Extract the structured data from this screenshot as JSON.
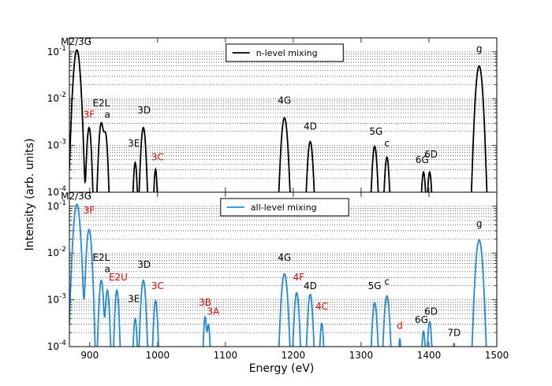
{
  "chart_data": {
    "type": "line",
    "xlabel": "Energy (eV)",
    "ylabel": "Intensity (arb. units)",
    "xlim": [
      870,
      1500
    ],
    "ylim": [
      0.0001,
      0.2
    ],
    "yscale": "log",
    "grid": "horizontal minor dotted",
    "x_ticks": [
      900,
      1000,
      1100,
      1200,
      1300,
      1400,
      1500
    ],
    "y_ticks": [
      {
        "value": 0.1,
        "mant": "10",
        "exp": "-1"
      },
      {
        "value": 0.01,
        "mant": "10",
        "exp": "-2"
      },
      {
        "value": 0.001,
        "mant": "10",
        "exp": "-3"
      },
      {
        "value": 0.0001,
        "mant": "10",
        "exp": "-4"
      }
    ],
    "panels": [
      {
        "name": "n-level mixing",
        "legend": "n-level mixing",
        "legend_position": "top-center",
        "color": "#000000",
        "peaks": [
          {
            "x": 881,
            "y": 0.11,
            "w": 3.2
          },
          {
            "x": 899,
            "y": 0.0024,
            "w": 2.2
          },
          {
            "x": 917,
            "y": 0.003,
            "w": 2.4
          },
          {
            "x": 923,
            "y": 0.0018,
            "w": 2.2
          },
          {
            "x": 967,
            "y": 0.00042,
            "w": 1.8
          },
          {
            "x": 979,
            "y": 0.0024,
            "w": 2.4
          },
          {
            "x": 997,
            "y": 0.0003,
            "w": 1.6
          },
          {
            "x": 1187,
            "y": 0.0039,
            "w": 3.0
          },
          {
            "x": 1225,
            "y": 0.0012,
            "w": 2.6
          },
          {
            "x": 1320,
            "y": 0.00095,
            "w": 2.4
          },
          {
            "x": 1338,
            "y": 0.00055,
            "w": 2.2
          },
          {
            "x": 1392,
            "y": 0.00026,
            "w": 2.0
          },
          {
            "x": 1401,
            "y": 0.00026,
            "w": 2.0
          },
          {
            "x": 1474,
            "y": 0.05,
            "w": 3.2
          }
        ],
        "annotations": [
          {
            "text": "M2/3G",
            "x": 880,
            "y": 0.14,
            "color": "black"
          },
          {
            "text": "E2L",
            "x": 917,
            "y": 0.0068,
            "color": "black"
          },
          {
            "text": "3F",
            "x": 899,
            "y": 0.0039,
            "color": "red"
          },
          {
            "text": "a",
            "x": 926,
            "y": 0.0039,
            "color": "black"
          },
          {
            "text": "3D",
            "x": 980,
            "y": 0.0048,
            "color": "black"
          },
          {
            "text": "3E",
            "x": 965,
            "y": 0.00095,
            "color": "black"
          },
          {
            "text": "3C",
            "x": 1000,
            "y": 0.00048,
            "color": "red"
          },
          {
            "text": "4G",
            "x": 1187,
            "y": 0.0078,
            "color": "black"
          },
          {
            "text": "4D",
            "x": 1225,
            "y": 0.0022,
            "color": "black"
          },
          {
            "text": "5G",
            "x": 1322,
            "y": 0.0017,
            "color": "black"
          },
          {
            "text": "c",
            "x": 1338,
            "y": 0.00095,
            "color": "black"
          },
          {
            "text": "6G",
            "x": 1390,
            "y": 0.00042,
            "color": "black"
          },
          {
            "text": "6D",
            "x": 1403,
            "y": 0.00055,
            "color": "black"
          },
          {
            "text": "g",
            "x": 1474,
            "y": 0.1,
            "color": "black"
          }
        ]
      },
      {
        "name": "all-level mixing",
        "legend": "all-level mixing",
        "legend_position": "top-center",
        "color": "#1f8ad8",
        "peaks": [
          {
            "x": 881,
            "y": 0.11,
            "w": 3.2
          },
          {
            "x": 899,
            "y": 0.032,
            "w": 2.6
          },
          {
            "x": 917,
            "y": 0.0026,
            "w": 2.2
          },
          {
            "x": 926,
            "y": 0.0016,
            "w": 2.0
          },
          {
            "x": 940,
            "y": 0.0016,
            "w": 2.0
          },
          {
            "x": 967,
            "y": 0.00038,
            "w": 1.8
          },
          {
            "x": 979,
            "y": 0.0026,
            "w": 2.4
          },
          {
            "x": 997,
            "y": 0.00095,
            "w": 2.0
          },
          {
            "x": 1070,
            "y": 0.00042,
            "w": 1.6
          },
          {
            "x": 1075,
            "y": 0.00028,
            "w": 1.6
          },
          {
            "x": 1187,
            "y": 0.0036,
            "w": 3.0
          },
          {
            "x": 1205,
            "y": 0.0014,
            "w": 2.4
          },
          {
            "x": 1225,
            "y": 0.0013,
            "w": 2.4
          },
          {
            "x": 1242,
            "y": 0.0003,
            "w": 1.8
          },
          {
            "x": 1320,
            "y": 0.00085,
            "w": 2.4
          },
          {
            "x": 1338,
            "y": 0.0012,
            "w": 2.6
          },
          {
            "x": 1357,
            "y": 0.00014,
            "w": 1.2
          },
          {
            "x": 1392,
            "y": 0.0002,
            "w": 1.8
          },
          {
            "x": 1401,
            "y": 0.00033,
            "w": 2.0
          },
          {
            "x": 1437,
            "y": 0.00011,
            "w": 1.0
          },
          {
            "x": 1474,
            "y": 0.019,
            "w": 3.2
          }
        ],
        "annotations": [
          {
            "text": "M2/3G",
            "x": 880,
            "y": 0.14,
            "color": "black"
          },
          {
            "text": "3F",
            "x": 899,
            "y": 0.07,
            "color": "red"
          },
          {
            "text": "E2L",
            "x": 917,
            "y": 0.0068,
            "color": "black"
          },
          {
            "text": "a",
            "x": 926,
            "y": 0.0039,
            "color": "black"
          },
          {
            "text": "E2U",
            "x": 942,
            "y": 0.0026,
            "color": "red"
          },
          {
            "text": "3D",
            "x": 980,
            "y": 0.0048,
            "color": "black"
          },
          {
            "text": "3C",
            "x": 1000,
            "y": 0.0017,
            "color": "red"
          },
          {
            "text": "3E",
            "x": 965,
            "y": 0.0009,
            "color": "black"
          },
          {
            "text": "3B",
            "x": 1070,
            "y": 0.00075,
            "color": "red"
          },
          {
            "text": "3A",
            "x": 1082,
            "y": 0.00048,
            "color": "red"
          },
          {
            "text": "4G",
            "x": 1187,
            "y": 0.0068,
            "color": "black"
          },
          {
            "text": "4F",
            "x": 1208,
            "y": 0.0026,
            "color": "red"
          },
          {
            "text": "4D",
            "x": 1225,
            "y": 0.0017,
            "color": "black"
          },
          {
            "text": "4C",
            "x": 1242,
            "y": 0.00062,
            "color": "red"
          },
          {
            "text": "5G",
            "x": 1320,
            "y": 0.0017,
            "color": "black"
          },
          {
            "text": "c",
            "x": 1338,
            "y": 0.0021,
            "color": "black"
          },
          {
            "text": "d",
            "x": 1357,
            "y": 0.00024,
            "color": "red"
          },
          {
            "text": "6G",
            "x": 1389,
            "y": 0.00032,
            "color": "black"
          },
          {
            "text": "6D",
            "x": 1403,
            "y": 0.00048,
            "color": "black"
          },
          {
            "text": "7D",
            "x": 1437,
            "y": 0.00017,
            "color": "black"
          },
          {
            "text": "g",
            "x": 1474,
            "y": 0.036,
            "color": "black"
          }
        ]
      }
    ]
  }
}
